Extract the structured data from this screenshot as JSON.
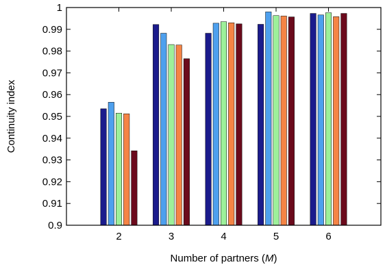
{
  "chart_data": {
    "type": "bar",
    "xlabel_prefix": "Number of partners (",
    "xlabel_var": "M",
    "xlabel_suffix": ")",
    "ylabel": "Continuity index",
    "categories": [
      "2",
      "3",
      "4",
      "5",
      "6"
    ],
    "ylim": [
      0.9,
      1.0
    ],
    "yticks": [
      "0.9",
      "0.91",
      "0.92",
      "0.93",
      "0.94",
      "0.95",
      "0.96",
      "0.97",
      "0.98",
      "0.99",
      "1"
    ],
    "grid": false,
    "legend": "none",
    "series": [
      {
        "color": "#1b1b8c",
        "values": [
          0.9535,
          0.9922,
          0.9882,
          0.9923,
          0.9973
        ]
      },
      {
        "color": "#4ea0ee",
        "values": [
          0.9565,
          0.9882,
          0.9928,
          0.998,
          0.9966
        ]
      },
      {
        "color": "#9df09a",
        "values": [
          0.9515,
          0.983,
          0.9935,
          0.9963,
          0.9976
        ]
      },
      {
        "color": "#f58445",
        "values": [
          0.9512,
          0.9828,
          0.993,
          0.9961,
          0.9958
        ]
      },
      {
        "color": "#6b0a1c",
        "values": [
          0.9342,
          0.9765,
          0.9925,
          0.9957,
          0.9973
        ]
      }
    ]
  }
}
